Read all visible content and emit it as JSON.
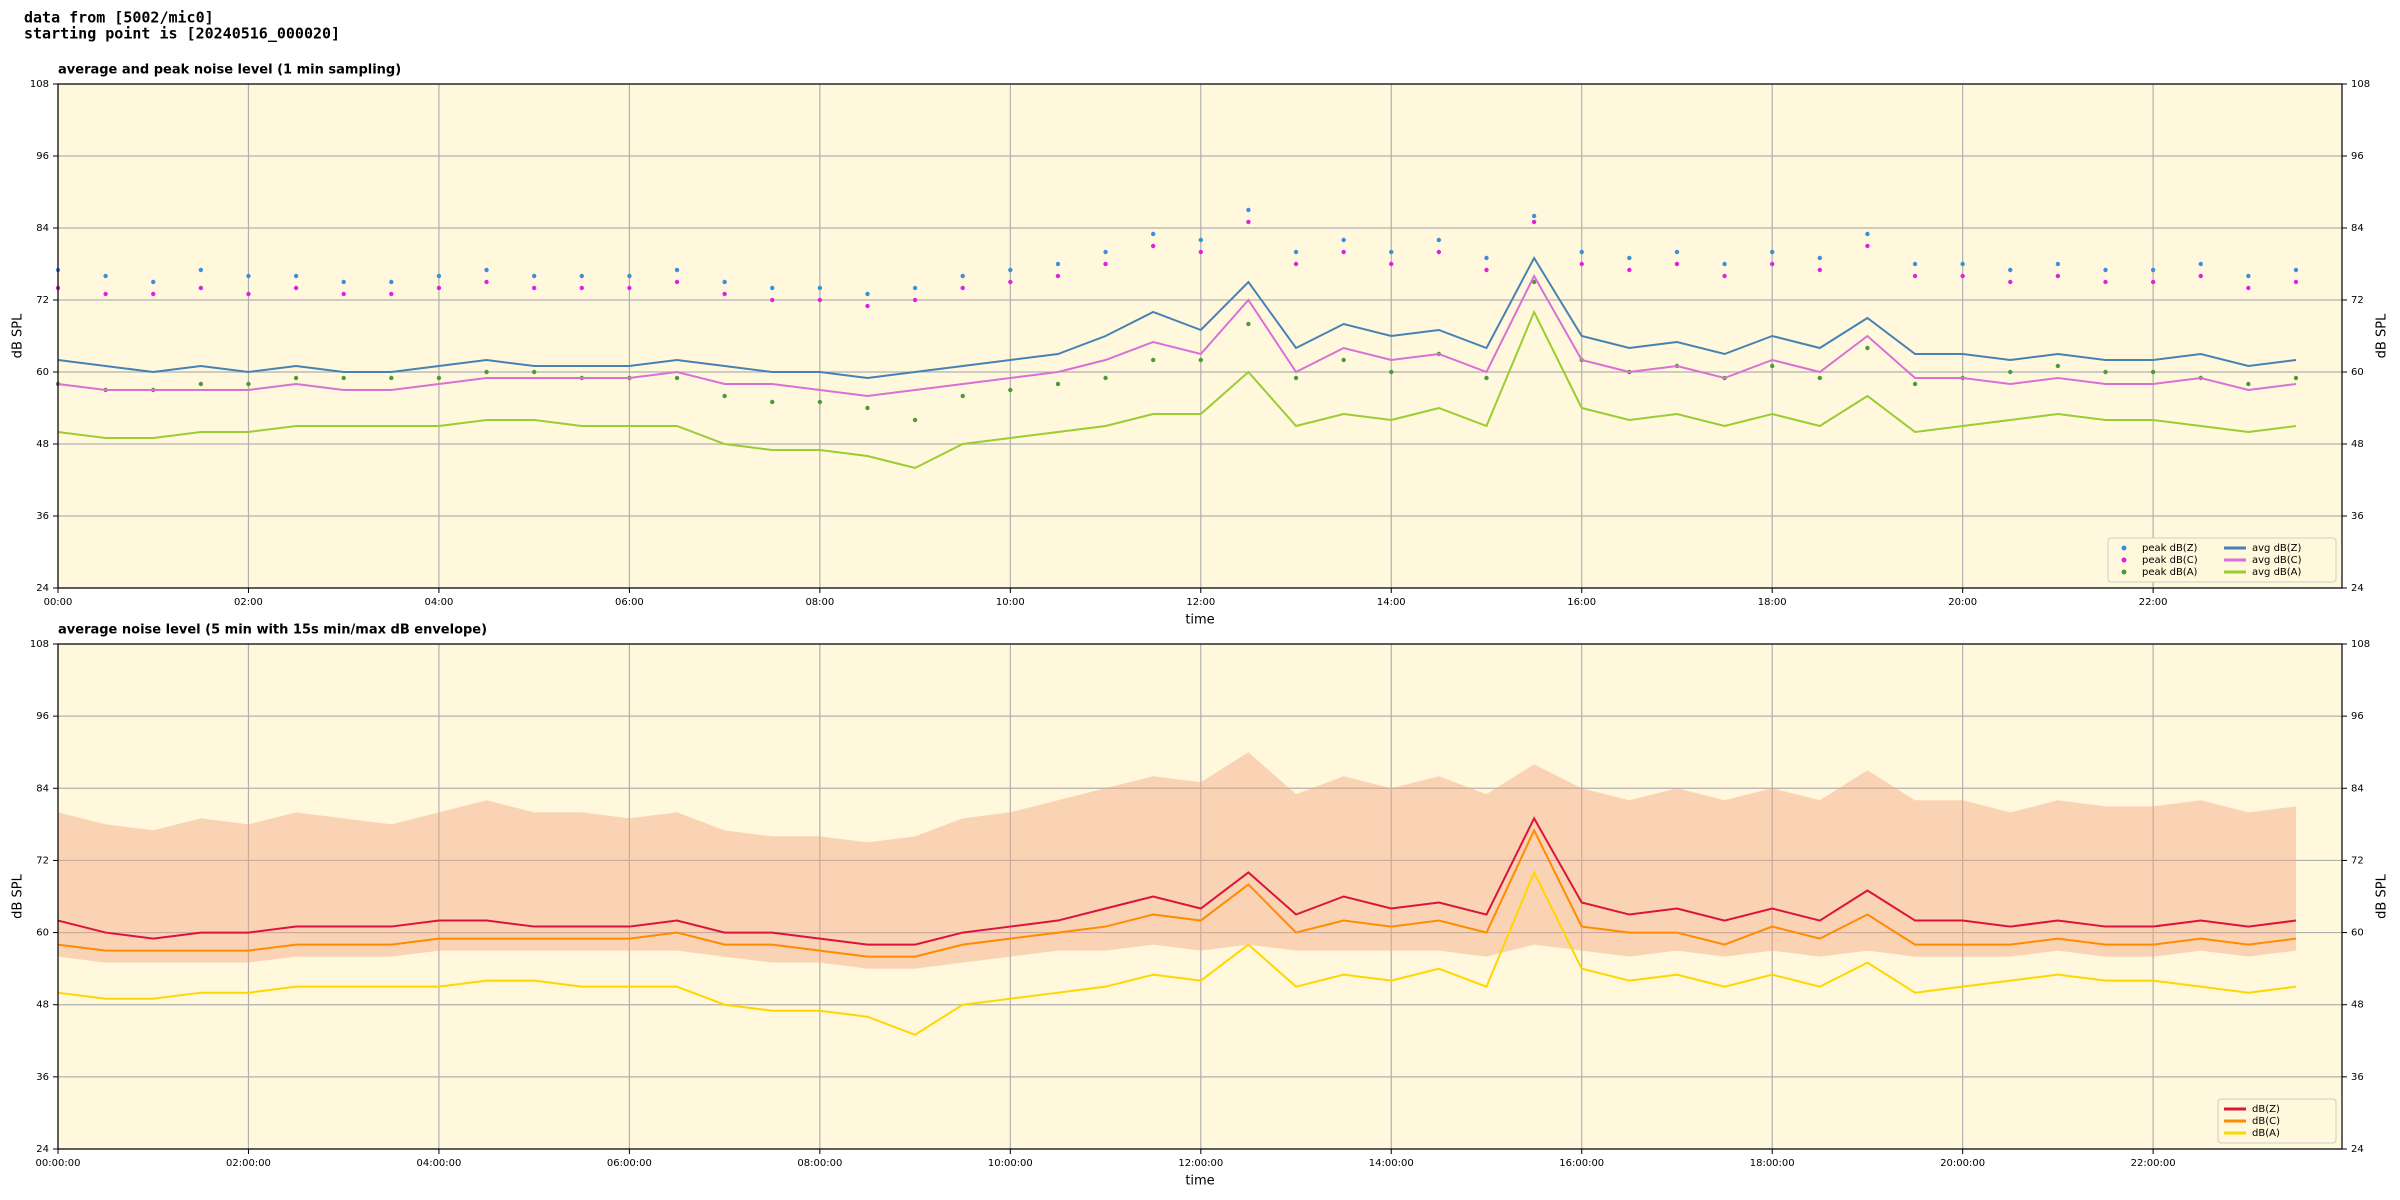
{
  "header": [
    "data from [5002/mic0]",
    "starting point is [20240516_000020]"
  ],
  "chart_data": [
    {
      "type": "line",
      "title": "average and peak noise level (1 min sampling)",
      "xlabel": "time",
      "ylabel": "dB SPL",
      "background": "#fff8dc",
      "grid": true,
      "legend": "lower right",
      "x": [
        "00:00",
        "00:30",
        "01:00",
        "01:30",
        "02:00",
        "02:30",
        "03:00",
        "03:30",
        "04:00",
        "04:30",
        "05:00",
        "05:30",
        "06:00",
        "06:30",
        "07:00",
        "07:30",
        "08:00",
        "08:30",
        "09:00",
        "09:30",
        "10:00",
        "10:30",
        "11:00",
        "11:30",
        "12:00",
        "12:30",
        "13:00",
        "13:30",
        "14:00",
        "14:30",
        "15:00",
        "15:30",
        "16:00",
        "16:30",
        "17:00",
        "17:30",
        "18:00",
        "18:30",
        "19:00",
        "19:30",
        "20:00",
        "20:30",
        "21:00",
        "21:30",
        "22:00",
        "22:30",
        "23:00",
        "23:30"
      ],
      "xlim": [
        "00:00",
        "23:59"
      ],
      "xticks": [
        "00:00",
        "02:00",
        "04:00",
        "06:00",
        "08:00",
        "10:00",
        "12:00",
        "14:00",
        "16:00",
        "18:00",
        "20:00",
        "22:00"
      ],
      "ylim": [
        24,
        108
      ],
      "yticks": [
        24,
        36,
        48,
        60,
        72,
        84,
        96,
        108
      ],
      "series": [
        {
          "name": "peak dB(Z)",
          "mark": "dot",
          "color": "#3a8fd8",
          "values": [
            77,
            76,
            75,
            77,
            76,
            76,
            75,
            75,
            76,
            77,
            76,
            76,
            76,
            77,
            75,
            74,
            74,
            73,
            74,
            76,
            77,
            78,
            80,
            83,
            82,
            87,
            80,
            82,
            80,
            82,
            79,
            86,
            80,
            79,
            80,
            78,
            80,
            79,
            83,
            78,
            78,
            77,
            78,
            77,
            77,
            78,
            76,
            77
          ]
        },
        {
          "name": "peak dB(C)",
          "mark": "dot",
          "color": "#e020e0",
          "values": [
            74,
            73,
            73,
            74,
            73,
            74,
            73,
            73,
            74,
            75,
            74,
            74,
            74,
            75,
            73,
            72,
            72,
            71,
            72,
            74,
            75,
            76,
            78,
            81,
            80,
            85,
            78,
            80,
            78,
            80,
            77,
            85,
            78,
            77,
            78,
            76,
            78,
            77,
            81,
            76,
            76,
            75,
            76,
            75,
            75,
            76,
            74,
            75
          ]
        },
        {
          "name": "peak dB(A)",
          "mark": "dot",
          "color": "#4a9a3a",
          "values": [
            58,
            57,
            57,
            58,
            58,
            59,
            59,
            59,
            59,
            60,
            60,
            59,
            59,
            59,
            56,
            55,
            55,
            54,
            52,
            56,
            57,
            58,
            59,
            62,
            62,
            68,
            59,
            62,
            60,
            63,
            59,
            75,
            62,
            60,
            61,
            59,
            61,
            59,
            64,
            58,
            59,
            60,
            61,
            60,
            60,
            59,
            58,
            59
          ]
        },
        {
          "name": "avg dB(Z)",
          "mark": "line",
          "color": "#4682b4",
          "values": [
            62,
            61,
            60,
            61,
            60,
            61,
            60,
            60,
            61,
            62,
            61,
            61,
            61,
            62,
            61,
            60,
            60,
            59,
            60,
            61,
            62,
            63,
            66,
            70,
            67,
            75,
            64,
            68,
            66,
            67,
            64,
            79,
            66,
            64,
            65,
            63,
            66,
            64,
            69,
            63,
            63,
            62,
            63,
            62,
            62,
            63,
            61,
            62
          ]
        },
        {
          "name": "avg dB(C)",
          "mark": "line",
          "color": "#da70d6",
          "values": [
            58,
            57,
            57,
            57,
            57,
            58,
            57,
            57,
            58,
            59,
            59,
            59,
            59,
            60,
            58,
            58,
            57,
            56,
            57,
            58,
            59,
            60,
            62,
            65,
            63,
            72,
            60,
            64,
            62,
            63,
            60,
            76,
            62,
            60,
            61,
            59,
            62,
            60,
            66,
            59,
            59,
            58,
            59,
            58,
            58,
            59,
            57,
            58
          ]
        },
        {
          "name": "avg dB(A)",
          "mark": "line",
          "color": "#9acd32",
          "values": [
            50,
            49,
            49,
            50,
            50,
            51,
            51,
            51,
            51,
            52,
            52,
            51,
            51,
            51,
            48,
            47,
            47,
            46,
            44,
            48,
            49,
            50,
            51,
            53,
            53,
            60,
            51,
            53,
            52,
            54,
            51,
            70,
            54,
            52,
            53,
            51,
            53,
            51,
            56,
            50,
            51,
            52,
            53,
            52,
            52,
            51,
            50,
            51
          ]
        }
      ]
    },
    {
      "type": "line",
      "title": "average noise level (5 min with 15s min/max dB envelope)",
      "xlabel": "time",
      "ylabel": "dB SPL",
      "background": "#fff8dc",
      "grid": true,
      "legend": "lower right",
      "x": [
        "00:00:00",
        "00:30:00",
        "01:00:00",
        "01:30:00",
        "02:00:00",
        "02:30:00",
        "03:00:00",
        "03:30:00",
        "04:00:00",
        "04:30:00",
        "05:00:00",
        "05:30:00",
        "06:00:00",
        "06:30:00",
        "07:00:00",
        "07:30:00",
        "08:00:00",
        "08:30:00",
        "09:00:00",
        "09:30:00",
        "10:00:00",
        "10:30:00",
        "11:00:00",
        "11:30:00",
        "12:00:00",
        "12:30:00",
        "13:00:00",
        "13:30:00",
        "14:00:00",
        "14:30:00",
        "15:00:00",
        "15:30:00",
        "16:00:00",
        "16:30:00",
        "17:00:00",
        "17:30:00",
        "18:00:00",
        "18:30:00",
        "19:00:00",
        "19:30:00",
        "20:00:00",
        "20:30:00",
        "21:00:00",
        "21:30:00",
        "22:00:00",
        "22:30:00",
        "23:00:00",
        "23:30:00"
      ],
      "xlim": [
        "00:00:00",
        "23:59:00"
      ],
      "xticks": [
        "00:00:00",
        "02:00:00",
        "04:00:00",
        "06:00:00",
        "08:00:00",
        "10:00:00",
        "12:00:00",
        "14:00:00",
        "16:00:00",
        "18:00:00",
        "20:00:00",
        "22:00:00"
      ],
      "ylim": [
        24,
        108
      ],
      "yticks": [
        24,
        36,
        48,
        60,
        72,
        84,
        96,
        108
      ],
      "envelope": {
        "color": "#f4a582",
        "low": [
          56,
          55,
          55,
          55,
          55,
          56,
          56,
          56,
          57,
          57,
          57,
          57,
          57,
          57,
          56,
          55,
          55,
          54,
          54,
          55,
          56,
          57,
          57,
          58,
          57,
          58,
          57,
          57,
          57,
          57,
          56,
          58,
          57,
          56,
          57,
          56,
          57,
          56,
          57,
          56,
          56,
          56,
          57,
          56,
          56,
          57,
          56,
          57
        ],
        "high": [
          80,
          78,
          77,
          79,
          78,
          80,
          79,
          78,
          80,
          82,
          80,
          80,
          79,
          80,
          77,
          76,
          76,
          75,
          76,
          79,
          80,
          82,
          84,
          86,
          85,
          90,
          83,
          86,
          84,
          86,
          83,
          88,
          84,
          82,
          84,
          82,
          84,
          82,
          87,
          82,
          82,
          80,
          82,
          81,
          81,
          82,
          80,
          81
        ]
      },
      "series": [
        {
          "name": "dB(Z)",
          "mark": "line",
          "color": "#dc143c",
          "values": [
            62,
            60,
            59,
            60,
            60,
            61,
            61,
            61,
            62,
            62,
            61,
            61,
            61,
            62,
            60,
            60,
            59,
            58,
            58,
            60,
            61,
            62,
            64,
            66,
            64,
            70,
            63,
            66,
            64,
            65,
            63,
            79,
            65,
            63,
            64,
            62,
            64,
            62,
            67,
            62,
            62,
            61,
            62,
            61,
            61,
            62,
            61,
            62
          ]
        },
        {
          "name": "dB(C)",
          "mark": "line",
          "color": "#ff8c00",
          "values": [
            58,
            57,
            57,
            57,
            57,
            58,
            58,
            58,
            59,
            59,
            59,
            59,
            59,
            60,
            58,
            58,
            57,
            56,
            56,
            58,
            59,
            60,
            61,
            63,
            62,
            68,
            60,
            62,
            61,
            62,
            60,
            77,
            61,
            60,
            60,
            58,
            61,
            59,
            63,
            58,
            58,
            58,
            59,
            58,
            58,
            59,
            58,
            59
          ]
        },
        {
          "name": "dB(A)",
          "mark": "line",
          "color": "#ffd700",
          "values": [
            50,
            49,
            49,
            50,
            50,
            51,
            51,
            51,
            51,
            52,
            52,
            51,
            51,
            51,
            48,
            47,
            47,
            46,
            43,
            48,
            49,
            50,
            51,
            53,
            52,
            58,
            51,
            53,
            52,
            54,
            51,
            70,
            54,
            52,
            53,
            51,
            53,
            51,
            55,
            50,
            51,
            52,
            53,
            52,
            52,
            51,
            50,
            51
          ]
        }
      ]
    }
  ]
}
